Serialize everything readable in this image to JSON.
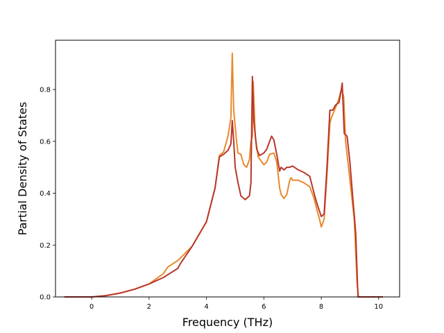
{
  "chart_data": {
    "type": "line",
    "title": "",
    "xlabel": "Frequency (THz)",
    "ylabel": "Partial Density of States",
    "xlim": [
      -1.26,
      10.73
    ],
    "ylim": [
      0,
      0.99
    ],
    "xticks": [
      0,
      2,
      4,
      6,
      8,
      10
    ],
    "yticks": [
      0.0,
      0.2,
      0.4,
      0.6,
      0.8
    ],
    "grid": false,
    "series": [
      {
        "color": "#e8892b",
        "points": [
          [
            -0.95,
            0
          ],
          [
            0,
            0
          ],
          [
            0.5,
            0.005
          ],
          [
            1,
            0.015
          ],
          [
            1.5,
            0.03
          ],
          [
            2,
            0.05
          ],
          [
            2.5,
            0.09
          ],
          [
            2.65,
            0.115
          ],
          [
            3,
            0.14
          ],
          [
            3.5,
            0.195
          ],
          [
            4,
            0.29
          ],
          [
            4.3,
            0.42
          ],
          [
            4.45,
            0.545
          ],
          [
            4.6,
            0.56
          ],
          [
            4.75,
            0.62
          ],
          [
            4.85,
            0.69
          ],
          [
            4.9,
            0.94
          ],
          [
            4.95,
            0.72
          ],
          [
            5.05,
            0.6
          ],
          [
            5.1,
            0.555
          ],
          [
            5.2,
            0.55
          ],
          [
            5.3,
            0.51
          ],
          [
            5.4,
            0.5
          ],
          [
            5.5,
            0.53
          ],
          [
            5.55,
            0.6
          ],
          [
            5.6,
            0.62
          ],
          [
            5.63,
            0.83
          ],
          [
            5.7,
            0.62
          ],
          [
            5.8,
            0.54
          ],
          [
            6,
            0.51
          ],
          [
            6.1,
            0.52
          ],
          [
            6.2,
            0.55
          ],
          [
            6.35,
            0.555
          ],
          [
            6.45,
            0.52
          ],
          [
            6.55,
            0.42
          ],
          [
            6.6,
            0.395
          ],
          [
            6.7,
            0.38
          ],
          [
            6.8,
            0.395
          ],
          [
            6.9,
            0.45
          ],
          [
            6.95,
            0.46
          ],
          [
            7,
            0.45
          ],
          [
            7.2,
            0.45
          ],
          [
            7.4,
            0.44
          ],
          [
            7.6,
            0.425
          ],
          [
            7.75,
            0.38
          ],
          [
            7.85,
            0.335
          ],
          [
            7.95,
            0.295
          ],
          [
            8,
            0.27
          ],
          [
            8.1,
            0.3
          ],
          [
            8.2,
            0.47
          ],
          [
            8.3,
            0.67
          ],
          [
            8.35,
            0.69
          ],
          [
            8.5,
            0.73
          ],
          [
            8.6,
            0.76
          ],
          [
            8.7,
            0.8
          ],
          [
            8.78,
            0.775
          ],
          [
            8.85,
            0.6
          ],
          [
            8.95,
            0.5
          ],
          [
            9.05,
            0.4
          ],
          [
            9.15,
            0.3
          ],
          [
            9.25,
            0.05
          ],
          [
            9.3,
            0
          ],
          [
            10.15,
            0
          ]
        ]
      },
      {
        "color": "#b9362a",
        "points": [
          [
            -0.95,
            0
          ],
          [
            0,
            0
          ],
          [
            0.5,
            0.005
          ],
          [
            1,
            0.015
          ],
          [
            1.5,
            0.03
          ],
          [
            2,
            0.05
          ],
          [
            2.5,
            0.075
          ],
          [
            3,
            0.11
          ],
          [
            3.1,
            0.13
          ],
          [
            3.5,
            0.195
          ],
          [
            4,
            0.29
          ],
          [
            4.3,
            0.42
          ],
          [
            4.45,
            0.54
          ],
          [
            4.6,
            0.55
          ],
          [
            4.75,
            0.565
          ],
          [
            4.85,
            0.59
          ],
          [
            4.9,
            0.68
          ],
          [
            4.95,
            0.6
          ],
          [
            5,
            0.5
          ],
          [
            5.1,
            0.44
          ],
          [
            5.2,
            0.39
          ],
          [
            5.35,
            0.375
          ],
          [
            5.5,
            0.39
          ],
          [
            5.55,
            0.44
          ],
          [
            5.6,
            0.85
          ],
          [
            5.65,
            0.68
          ],
          [
            5.75,
            0.57
          ],
          [
            5.85,
            0.545
          ],
          [
            6,
            0.555
          ],
          [
            6.1,
            0.57
          ],
          [
            6.2,
            0.6
          ],
          [
            6.27,
            0.62
          ],
          [
            6.35,
            0.605
          ],
          [
            6.45,
            0.55
          ],
          [
            6.55,
            0.485
          ],
          [
            6.6,
            0.5
          ],
          [
            6.7,
            0.49
          ],
          [
            6.8,
            0.5
          ],
          [
            6.9,
            0.5
          ],
          [
            7,
            0.505
          ],
          [
            7.2,
            0.49
          ],
          [
            7.4,
            0.48
          ],
          [
            7.6,
            0.465
          ],
          [
            7.75,
            0.4
          ],
          [
            7.85,
            0.36
          ],
          [
            8,
            0.31
          ],
          [
            8.1,
            0.32
          ],
          [
            8.2,
            0.5
          ],
          [
            8.3,
            0.72
          ],
          [
            8.4,
            0.72
          ],
          [
            8.5,
            0.74
          ],
          [
            8.62,
            0.75
          ],
          [
            8.7,
            0.8
          ],
          [
            8.73,
            0.825
          ],
          [
            8.8,
            0.63
          ],
          [
            8.9,
            0.62
          ],
          [
            9,
            0.52
          ],
          [
            9.1,
            0.38
          ],
          [
            9.2,
            0.25
          ],
          [
            9.28,
            0
          ],
          [
            10.15,
            0
          ]
        ]
      }
    ]
  }
}
